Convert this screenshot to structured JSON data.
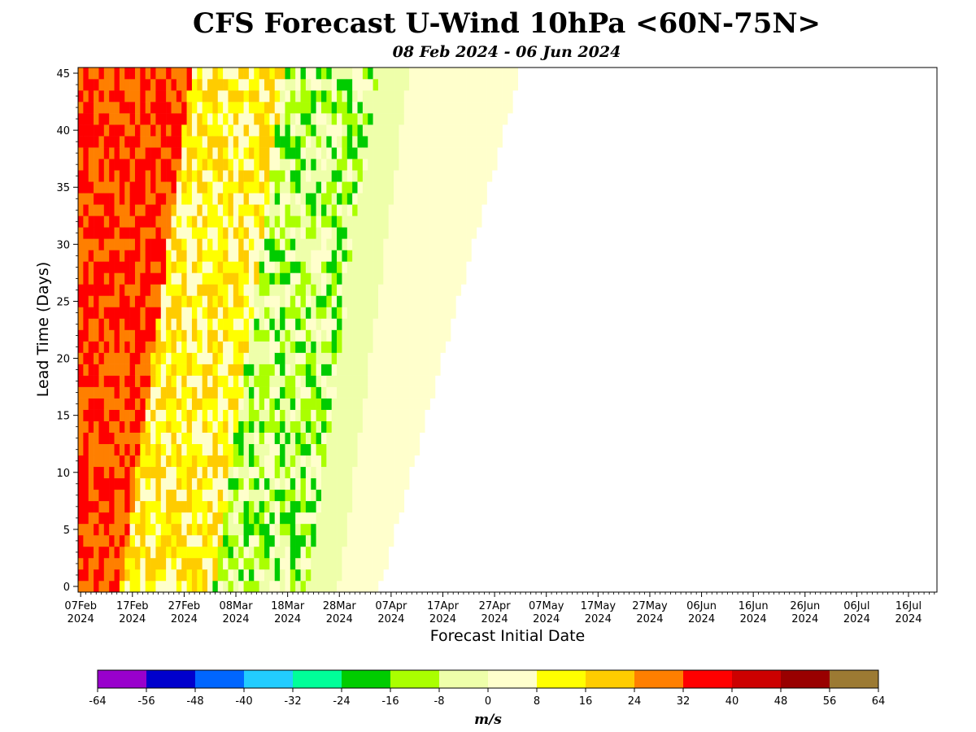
{
  "chart_data": {
    "type": "heatmap",
    "title": "CFS Forecast U-Wind 10hPa <60N-75N>",
    "subtitle": "08 Feb 2024 - 06 Jun 2024",
    "xlabel": "Forecast Initial Date",
    "ylabel": "Lead Time (Days)",
    "x_ticks": [
      {
        "line1": "07Feb",
        "line2": "2024",
        "day": 0
      },
      {
        "line1": "17Feb",
        "line2": "2024",
        "day": 10
      },
      {
        "line1": "27Feb",
        "line2": "2024",
        "day": 20
      },
      {
        "line1": "08Mar",
        "line2": "2024",
        "day": 30
      },
      {
        "line1": "18Mar",
        "line2": "2024",
        "day": 40
      },
      {
        "line1": "28Mar",
        "line2": "2024",
        "day": 50
      },
      {
        "line1": "07Apr",
        "line2": "2024",
        "day": 60
      },
      {
        "line1": "17Apr",
        "line2": "2024",
        "day": 70
      },
      {
        "line1": "27Apr",
        "line2": "2024",
        "day": 80
      },
      {
        "line1": "07May",
        "line2": "2024",
        "day": 90
      },
      {
        "line1": "17May",
        "line2": "2024",
        "day": 100
      },
      {
        "line1": "27May",
        "line2": "2024",
        "day": 110
      },
      {
        "line1": "06Jun",
        "line2": "2024",
        "day": 120
      },
      {
        "line1": "16Jun",
        "line2": "2024",
        "day": 130
      },
      {
        "line1": "26Jun",
        "line2": "2024",
        "day": 140
      },
      {
        "line1": "06Jul",
        "line2": "2024",
        "day": 150
      },
      {
        "line1": "16Jul",
        "line2": "2024",
        "day": 160
      }
    ],
    "xlim": [
      -0.5,
      165.5
    ],
    "y_ticks": [
      0,
      5,
      10,
      15,
      20,
      25,
      30,
      35,
      40,
      45
    ],
    "ylim": [
      -0.5,
      45.5
    ],
    "colorbar": {
      "label": "m/s",
      "bounds": [
        -64,
        -56,
        -48,
        -40,
        -32,
        -24,
        -16,
        -8,
        0,
        8,
        16,
        24,
        32,
        40,
        48,
        56,
        64
      ],
      "colors": [
        "#9900cc",
        "#0000cc",
        "#0066ff",
        "#22ccff",
        "#00ff99",
        "#00cc00",
        "#aaff00",
        "#eeffaa",
        "#ffffcc",
        "#ffff00",
        "#ffcc00",
        "#ff7f00",
        "#ff0000",
        "#cc0000",
        "#990000",
        "#9c7a33"
      ]
    },
    "data_note": "",
    "field": {
      "init_days": [
        0,
        120
      ],
      "lead_days": [
        0,
        45
      ],
      "regions": [
        {
          "x_start_at_lead0": 0,
          "x_end_at_lead0": 8,
          "slope": 0.3,
          "value_range": [
            24,
            40
          ]
        },
        {
          "x_start_at_lead0": 8,
          "x_end_at_lead0": 26,
          "slope": 0.3,
          "value_range": [
            0,
            24
          ]
        },
        {
          "x_start_at_lead0": 26,
          "x_end_at_lead0": 44,
          "slope": 0.3,
          "value_range": [
            -24,
            8
          ]
        },
        {
          "x_start_at_lead0": 44,
          "x_end_at_lead0": 50,
          "slope": 0.3,
          "value_range": [
            -8,
            0
          ]
        },
        {
          "x_start_at_lead0": 50,
          "x_end_at_lead0": 58,
          "slope": 0.6,
          "value_range": [
            0,
            8
          ]
        }
      ]
    }
  }
}
